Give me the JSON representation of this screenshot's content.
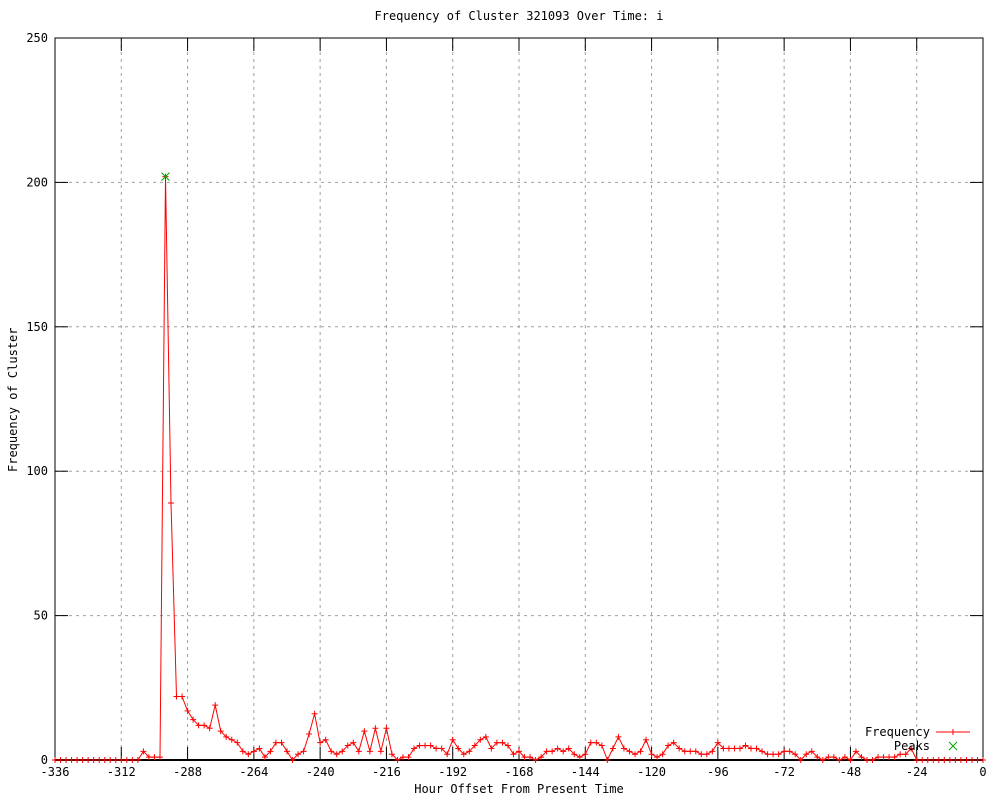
{
  "chart_data": {
    "type": "line",
    "title": "Frequency of Cluster 321093 Over Time: i",
    "xlabel": "Hour Offset From Present Time",
    "ylabel": "Frequency of Cluster",
    "xlim": [
      -336,
      0
    ],
    "ylim": [
      0,
      250
    ],
    "xticks": [
      -336,
      -312,
      -288,
      -264,
      -240,
      -216,
      -192,
      -168,
      -144,
      -120,
      -96,
      -72,
      -48,
      -24,
      0
    ],
    "yticks": [
      0,
      50,
      100,
      150,
      200,
      250
    ],
    "grid": true,
    "legend_position": "bottom-right",
    "colors": {
      "background": "#ffffff",
      "border": "#000000",
      "grid": "#a0a0a0",
      "frequency": "#ff0000",
      "peaks": "#00a800"
    },
    "series": [
      {
        "name": "Frequency",
        "color": "#ff0000",
        "marker": "plus",
        "with_line": true,
        "x_start": -336,
        "x_step": 2,
        "values": [
          0,
          0,
          0,
          0,
          0,
          0,
          0,
          0,
          0,
          0,
          0,
          0,
          0,
          0,
          0,
          0,
          3,
          1,
          1,
          1,
          202,
          89,
          22,
          22,
          17,
          14,
          12,
          12,
          11,
          19,
          10,
          8,
          7,
          6,
          3,
          2,
          3,
          4,
          1,
          3,
          6,
          6,
          3,
          0,
          2,
          3,
          9,
          16,
          6,
          7,
          3,
          2,
          3,
          5,
          6,
          3,
          10,
          3,
          11,
          3,
          11,
          2,
          0,
          1,
          1,
          4,
          5,
          5,
          5,
          4,
          4,
          2,
          7,
          4,
          2,
          3,
          5,
          7,
          8,
          4,
          6,
          6,
          5,
          2,
          3,
          1,
          1,
          0,
          1,
          3,
          3,
          4,
          3,
          4,
          2,
          1,
          2,
          6,
          6,
          5,
          0,
          4,
          8,
          4,
          3,
          2,
          3,
          7,
          2,
          1,
          2,
          5,
          6,
          4,
          3,
          3,
          3,
          2,
          2,
          3,
          6,
          4,
          4,
          4,
          4,
          5,
          4,
          4,
          3,
          2,
          2,
          2,
          3,
          3,
          2,
          0,
          2,
          3,
          1,
          0,
          1,
          1,
          0,
          1,
          0,
          3,
          1,
          0,
          0,
          1,
          1,
          1,
          1,
          2,
          2,
          4,
          0,
          0,
          0,
          0,
          0,
          0,
          0,
          0,
          0,
          0,
          0,
          0,
          0
        ]
      },
      {
        "name": "Peaks",
        "color": "#00a800",
        "marker": "cross",
        "with_line": false,
        "points": [
          [
            -296,
            202
          ]
        ]
      }
    ]
  }
}
